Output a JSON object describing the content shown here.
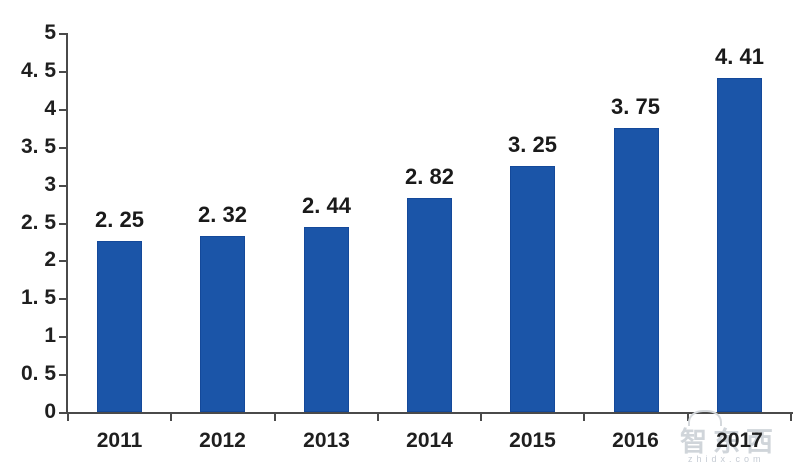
{
  "chart_data": {
    "type": "bar",
    "title": "",
    "xlabel": "",
    "ylabel": "",
    "categories": [
      "2011",
      "2012",
      "2013",
      "2014",
      "2015",
      "2016",
      "2017"
    ],
    "values": [
      2.25,
      2.32,
      2.44,
      2.82,
      3.25,
      3.75,
      4.41
    ],
    "value_labels": [
      "2. 25",
      "2. 32",
      "2. 44",
      "2. 82",
      "3. 25",
      "3. 75",
      "4. 41"
    ],
    "ylim": [
      0,
      5
    ],
    "y_tick_values": [
      0,
      0.5,
      1,
      1.5,
      2,
      2.5,
      3,
      3.5,
      4,
      4.5,
      5
    ],
    "y_tick_labels": [
      "0",
      "0. 5",
      "1",
      "1. 5",
      "2",
      "2. 5",
      "3",
      "3. 5",
      "4",
      "4. 5",
      "5"
    ],
    "grid": false,
    "legend": false,
    "legend_position": "none",
    "bar_color": "#1b55a8",
    "bar_border_color": "#14499a",
    "axis_color": "#4a4a4a",
    "label_color": "#1f1f1f"
  },
  "watermark": {
    "logo_text": "智东西",
    "domain_text": "zhidx.com",
    "color": "#cbd0d6"
  }
}
